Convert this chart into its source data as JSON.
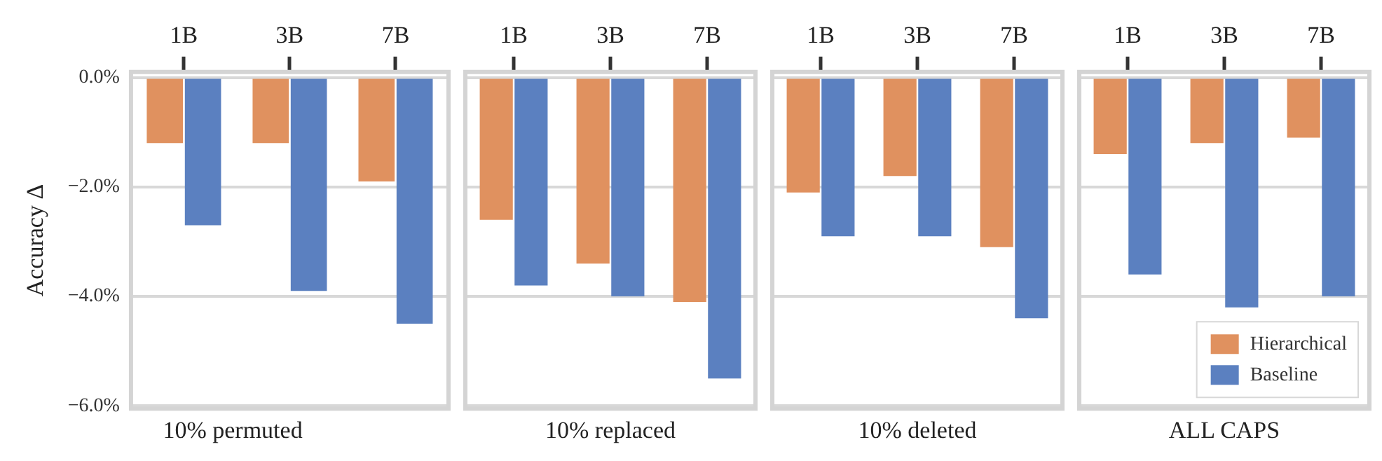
{
  "chart_data": [
    {
      "type": "bar",
      "xlabel": "10% permuted",
      "ylabel": "Accuracy Δ",
      "categories": [
        "1B",
        "3B",
        "7B"
      ],
      "ylim": [
        -6.05,
        0.1
      ],
      "yticks": [
        {
          "value": 0,
          "label": "0.0%"
        },
        {
          "value": -2,
          "label": "−2.0%"
        },
        {
          "value": -4,
          "label": "−4.0%"
        },
        {
          "value": -6,
          "label": "−6.0%"
        }
      ],
      "grid": "y",
      "legend": false,
      "series": [
        {
          "color": "#e0915f",
          "values": [
            -1.2,
            -1.2,
            -1.9
          ]
        },
        {
          "color": "#5b80c0",
          "values": [
            -2.7,
            -3.9,
            -4.5
          ]
        }
      ]
    },
    {
      "type": "bar",
      "xlabel": "10% replaced",
      "categories": [
        "1B",
        "3B",
        "7B"
      ],
      "ylim": [
        -6.05,
        0.1
      ],
      "yticks": [
        0,
        -2,
        -4,
        -6
      ],
      "grid": "y",
      "legend": false,
      "tick_labels": "x",
      "series": [
        {
          "color": "#e0915f",
          "values": [
            -2.6,
            -3.4,
            -4.1
          ]
        },
        {
          "color": "#5b80c0",
          "values": [
            -3.8,
            -4.0,
            -5.5
          ]
        }
      ]
    },
    {
      "type": "bar",
      "xlabel": "10% deleted",
      "categories": [
        "1B",
        "3B",
        "7B"
      ],
      "ylim": [
        -6.05,
        0.1
      ],
      "yticks": [
        0,
        -2,
        -4,
        -6
      ],
      "grid": "y",
      "legend": false,
      "tick_labels": "x",
      "series": [
        {
          "color": "#e0915f",
          "values": [
            -2.1,
            -1.8,
            -3.1
          ]
        },
        {
          "color": "#5b80c0",
          "values": [
            -2.9,
            -2.9,
            -4.4
          ]
        }
      ]
    },
    {
      "type": "bar",
      "xlabel": "ALL CAPS",
      "categories": [
        "1B",
        "3B",
        "7B"
      ],
      "ylim": [
        -6.05,
        0.1
      ],
      "yticks": [
        0,
        -2,
        -4,
        -6
      ],
      "grid": "y",
      "legend": "bottom right",
      "tick_labels": "x",
      "series": [
        {
          "name": "Hierarchical",
          "color": "#e0915f",
          "values": [
            -1.4,
            -1.2,
            -1.1
          ]
        },
        {
          "name": "Baseline",
          "color": "#5b80c0",
          "values": [
            -3.6,
            -4.2,
            -4.0
          ]
        }
      ]
    }
  ]
}
